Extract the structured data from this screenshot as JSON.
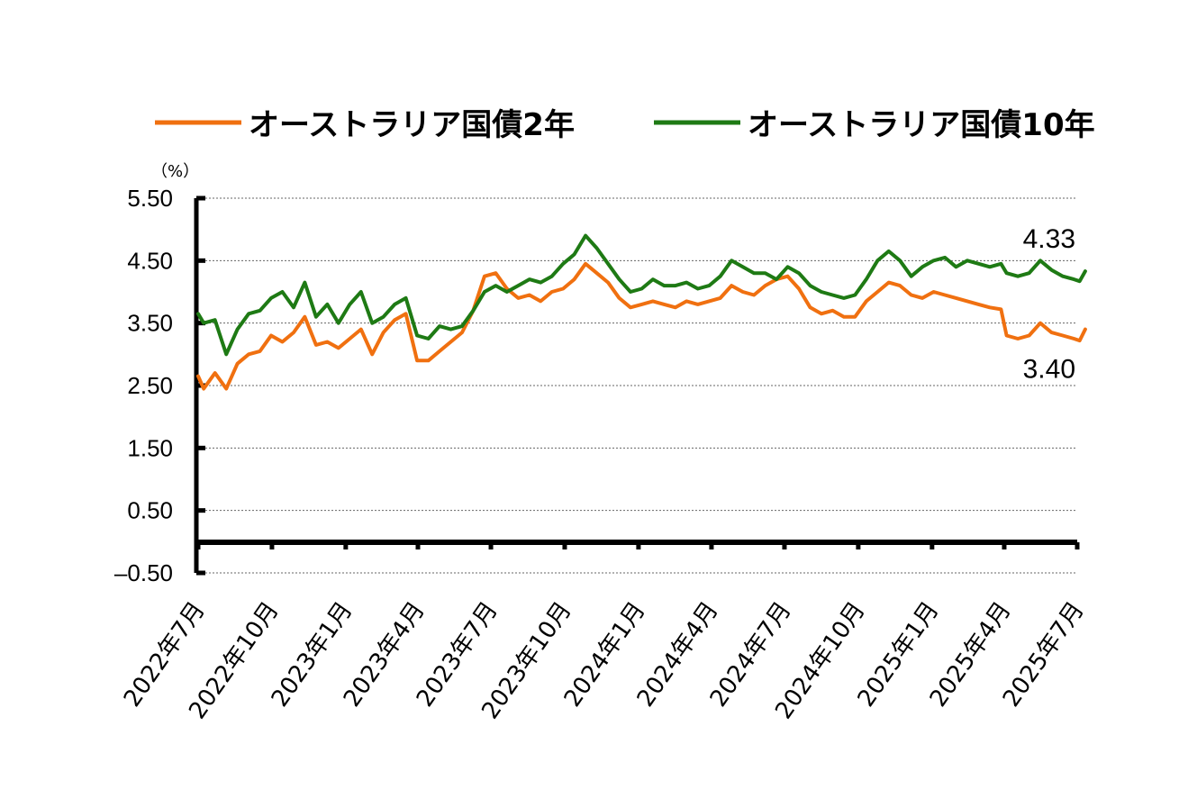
{
  "chart_data": {
    "type": "line",
    "unit_label": "（%）",
    "colors": {
      "two_year": "#f07010",
      "ten_year": "#1e7a14",
      "negative_tick": "#ff0000"
    },
    "legend": {
      "placement": "top"
    },
    "grid": true,
    "ylim": [
      -0.5,
      5.5
    ],
    "y_ticks": [
      {
        "value": 5.5,
        "label": "5.50"
      },
      {
        "value": 4.5,
        "label": "4.50"
      },
      {
        "value": 3.5,
        "label": "3.50"
      },
      {
        "value": 2.5,
        "label": "2.50"
      },
      {
        "value": 1.5,
        "label": "1.50"
      },
      {
        "value": 0.5,
        "label": "0.50"
      },
      {
        "value": -0.5,
        "label": "–0.50"
      }
    ],
    "xlim": [
      "2022-07",
      "2025-07"
    ],
    "x_ticks": [
      {
        "date": "2022-07",
        "label": "2022年7月"
      },
      {
        "date": "2022-10",
        "label": "2022年10月"
      },
      {
        "date": "2023-01",
        "label": "2023年1月"
      },
      {
        "date": "2023-04",
        "label": "2023年4月"
      },
      {
        "date": "2023-07",
        "label": "2023年7月"
      },
      {
        "date": "2023-10",
        "label": "2023年10月"
      },
      {
        "date": "2024-01",
        "label": "2024年1月"
      },
      {
        "date": "2024-04",
        "label": "2024年4月"
      },
      {
        "date": "2024-07",
        "label": "2024年7月"
      },
      {
        "date": "2024-10",
        "label": "2024年10月"
      },
      {
        "date": "2025-01",
        "label": "2025年1月"
      },
      {
        "date": "2025-04",
        "label": "2025年4月"
      },
      {
        "date": "2025-07",
        "label": "2025年7月"
      }
    ],
    "series": [
      {
        "name": "オーストラリア国債2年",
        "color": "#f07010",
        "end_label": "3.40",
        "points": [
          [
            "2022-07-01",
            2.65
          ],
          [
            "2022-07-08",
            2.45
          ],
          [
            "2022-07-22",
            2.7
          ],
          [
            "2022-08-05",
            2.45
          ],
          [
            "2022-08-19",
            2.85
          ],
          [
            "2022-09-02",
            3.0
          ],
          [
            "2022-09-16",
            3.05
          ],
          [
            "2022-09-30",
            3.3
          ],
          [
            "2022-10-14",
            3.2
          ],
          [
            "2022-10-28",
            3.35
          ],
          [
            "2022-11-11",
            3.6
          ],
          [
            "2022-11-25",
            3.15
          ],
          [
            "2022-12-09",
            3.2
          ],
          [
            "2022-12-23",
            3.1
          ],
          [
            "2023-01-06",
            3.25
          ],
          [
            "2023-01-20",
            3.4
          ],
          [
            "2023-02-03",
            3.0
          ],
          [
            "2023-02-17",
            3.35
          ],
          [
            "2023-03-03",
            3.55
          ],
          [
            "2023-03-17",
            3.65
          ],
          [
            "2023-03-31",
            2.9
          ],
          [
            "2023-04-14",
            2.9
          ],
          [
            "2023-04-28",
            3.05
          ],
          [
            "2023-05-12",
            3.2
          ],
          [
            "2023-05-26",
            3.35
          ],
          [
            "2023-06-09",
            3.7
          ],
          [
            "2023-06-23",
            4.25
          ],
          [
            "2023-07-07",
            4.3
          ],
          [
            "2023-07-21",
            4.05
          ],
          [
            "2023-08-04",
            3.9
          ],
          [
            "2023-08-18",
            3.95
          ],
          [
            "2023-09-01",
            3.85
          ],
          [
            "2023-09-15",
            4.0
          ],
          [
            "2023-09-29",
            4.05
          ],
          [
            "2023-10-13",
            4.2
          ],
          [
            "2023-10-27",
            4.45
          ],
          [
            "2023-11-10",
            4.3
          ],
          [
            "2023-11-24",
            4.15
          ],
          [
            "2023-12-08",
            3.9
          ],
          [
            "2023-12-22",
            3.75
          ],
          [
            "2024-01-05",
            3.8
          ],
          [
            "2024-01-19",
            3.85
          ],
          [
            "2024-02-02",
            3.8
          ],
          [
            "2024-02-16",
            3.75
          ],
          [
            "2024-03-01",
            3.85
          ],
          [
            "2024-03-15",
            3.8
          ],
          [
            "2024-03-29",
            3.85
          ],
          [
            "2024-04-12",
            3.9
          ],
          [
            "2024-04-26",
            4.1
          ],
          [
            "2024-05-10",
            4.0
          ],
          [
            "2024-05-24",
            3.95
          ],
          [
            "2024-06-07",
            4.1
          ],
          [
            "2024-06-21",
            4.2
          ],
          [
            "2024-07-05",
            4.25
          ],
          [
            "2024-07-19",
            4.05
          ],
          [
            "2024-08-02",
            3.75
          ],
          [
            "2024-08-16",
            3.65
          ],
          [
            "2024-08-30",
            3.7
          ],
          [
            "2024-09-13",
            3.6
          ],
          [
            "2024-09-27",
            3.6
          ],
          [
            "2024-10-11",
            3.85
          ],
          [
            "2024-10-25",
            4.0
          ],
          [
            "2024-11-08",
            4.15
          ],
          [
            "2024-11-22",
            4.1
          ],
          [
            "2024-12-06",
            3.95
          ],
          [
            "2024-12-20",
            3.9
          ],
          [
            "2025-01-03",
            4.0
          ],
          [
            "2025-01-17",
            3.95
          ],
          [
            "2025-01-31",
            3.9
          ],
          [
            "2025-02-14",
            3.85
          ],
          [
            "2025-02-28",
            3.8
          ],
          [
            "2025-03-14",
            3.75
          ],
          [
            "2025-03-28",
            3.72
          ],
          [
            "2025-04-04",
            3.3
          ],
          [
            "2025-04-18",
            3.25
          ],
          [
            "2025-05-02",
            3.3
          ],
          [
            "2025-05-16",
            3.5
          ],
          [
            "2025-05-30",
            3.35
          ],
          [
            "2025-06-13",
            3.3
          ],
          [
            "2025-06-27",
            3.25
          ],
          [
            "2025-07-04",
            3.22
          ],
          [
            "2025-07-11",
            3.4
          ]
        ]
      },
      {
        "name": "オーストラリア国債10年",
        "color": "#1e7a14",
        "end_label": "4.33",
        "points": [
          [
            "2022-07-01",
            3.65
          ],
          [
            "2022-07-08",
            3.5
          ],
          [
            "2022-07-22",
            3.55
          ],
          [
            "2022-08-05",
            3.0
          ],
          [
            "2022-08-19",
            3.4
          ],
          [
            "2022-09-02",
            3.65
          ],
          [
            "2022-09-16",
            3.7
          ],
          [
            "2022-09-30",
            3.9
          ],
          [
            "2022-10-14",
            4.0
          ],
          [
            "2022-10-28",
            3.75
          ],
          [
            "2022-11-11",
            4.15
          ],
          [
            "2022-11-25",
            3.6
          ],
          [
            "2022-12-09",
            3.8
          ],
          [
            "2022-12-23",
            3.5
          ],
          [
            "2023-01-06",
            3.8
          ],
          [
            "2023-01-20",
            4.0
          ],
          [
            "2023-02-03",
            3.5
          ],
          [
            "2023-02-17",
            3.6
          ],
          [
            "2023-03-03",
            3.8
          ],
          [
            "2023-03-17",
            3.9
          ],
          [
            "2023-03-31",
            3.3
          ],
          [
            "2023-04-14",
            3.25
          ],
          [
            "2023-04-28",
            3.45
          ],
          [
            "2023-05-12",
            3.4
          ],
          [
            "2023-05-26",
            3.45
          ],
          [
            "2023-06-09",
            3.7
          ],
          [
            "2023-06-23",
            4.0
          ],
          [
            "2023-07-07",
            4.1
          ],
          [
            "2023-07-21",
            4.0
          ],
          [
            "2023-08-04",
            4.1
          ],
          [
            "2023-08-18",
            4.2
          ],
          [
            "2023-09-01",
            4.15
          ],
          [
            "2023-09-15",
            4.25
          ],
          [
            "2023-09-29",
            4.45
          ],
          [
            "2023-10-13",
            4.6
          ],
          [
            "2023-10-27",
            4.9
          ],
          [
            "2023-11-10",
            4.7
          ],
          [
            "2023-11-24",
            4.45
          ],
          [
            "2023-12-08",
            4.2
          ],
          [
            "2023-12-22",
            4.0
          ],
          [
            "2024-01-05",
            4.05
          ],
          [
            "2024-01-19",
            4.2
          ],
          [
            "2024-02-02",
            4.1
          ],
          [
            "2024-02-16",
            4.1
          ],
          [
            "2024-03-01",
            4.15
          ],
          [
            "2024-03-15",
            4.05
          ],
          [
            "2024-03-29",
            4.1
          ],
          [
            "2024-04-12",
            4.25
          ],
          [
            "2024-04-26",
            4.5
          ],
          [
            "2024-05-10",
            4.4
          ],
          [
            "2024-05-24",
            4.3
          ],
          [
            "2024-06-07",
            4.3
          ],
          [
            "2024-06-21",
            4.2
          ],
          [
            "2024-07-05",
            4.4
          ],
          [
            "2024-07-19",
            4.3
          ],
          [
            "2024-08-02",
            4.1
          ],
          [
            "2024-08-16",
            4.0
          ],
          [
            "2024-08-30",
            3.95
          ],
          [
            "2024-09-13",
            3.9
          ],
          [
            "2024-09-27",
            3.95
          ],
          [
            "2024-10-11",
            4.2
          ],
          [
            "2024-10-25",
            4.5
          ],
          [
            "2024-11-08",
            4.65
          ],
          [
            "2024-11-22",
            4.5
          ],
          [
            "2024-12-06",
            4.25
          ],
          [
            "2024-12-20",
            4.4
          ],
          [
            "2025-01-03",
            4.5
          ],
          [
            "2025-01-17",
            4.55
          ],
          [
            "2025-01-31",
            4.4
          ],
          [
            "2025-02-14",
            4.5
          ],
          [
            "2025-02-28",
            4.45
          ],
          [
            "2025-03-14",
            4.4
          ],
          [
            "2025-03-28",
            4.45
          ],
          [
            "2025-04-04",
            4.3
          ],
          [
            "2025-04-18",
            4.25
          ],
          [
            "2025-05-02",
            4.3
          ],
          [
            "2025-05-16",
            4.5
          ],
          [
            "2025-05-30",
            4.35
          ],
          [
            "2025-06-13",
            4.25
          ],
          [
            "2025-06-27",
            4.2
          ],
          [
            "2025-07-04",
            4.17
          ],
          [
            "2025-07-11",
            4.33
          ]
        ]
      }
    ]
  }
}
